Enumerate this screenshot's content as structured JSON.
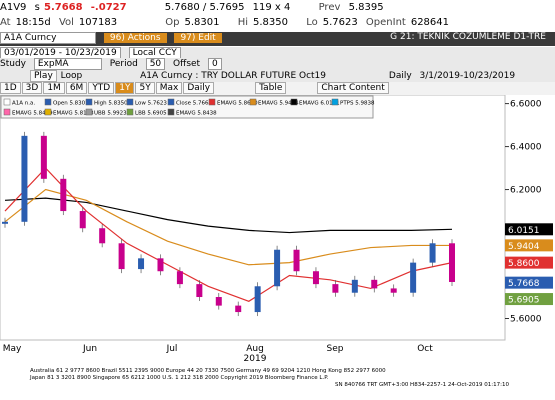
{
  "quote": {
    "ticker": "A1V9",
    "flag": "s",
    "last": "5.7668",
    "change": "-.0727",
    "bidask": "5.7680 / 5.7695",
    "size": "119 x 4",
    "prev_label": "Prev",
    "prev": "5.8395"
  },
  "stats": {
    "at_label": "At",
    "at": "18:15d",
    "vol_label": "Vol",
    "vol": "107183",
    "op_label": "Op",
    "op": "5.8301",
    "hi_label": "Hi",
    "hi": "5.8350",
    "lo_label": "Lo",
    "lo": "5.7623",
    "oi_label": "OpenInt",
    "oi": "628641"
  },
  "toolbar": {
    "security": "A1A Curncy",
    "actions": "96) Actions",
    "edit": "97) Edit",
    "page": "G 21: TEKNIK COZUMLEME D1-TRE"
  },
  "range": {
    "dates": "03/01/2019 - 10/23/2019",
    "currency": "Local CCY"
  },
  "study": {
    "label": "Study",
    "name": "ExpMA",
    "period_label": "Period",
    "period": "50",
    "offset_label": "Offset",
    "offset": "0"
  },
  "play": {
    "play": "Play",
    "loop": "Loop",
    "description": "A1A Curncy : TRY DOLLAR FUTURE Oct19",
    "freq": "Daily",
    "span": "3/1/2019-10/23/2019"
  },
  "buttons": [
    "1D",
    "3D",
    "1M",
    "6M",
    "YTD",
    "1Y",
    "5Y",
    "Max",
    "Daily",
    "Table",
    "Chart Content"
  ],
  "chart_data": {
    "type": "candlestick",
    "legend": [
      {
        "text": "A1A n.a.",
        "color": "#ffffff"
      },
      {
        "text": "Open 5.8301",
        "color": "#2a5db0"
      },
      {
        "text": "High 5.8350",
        "color": "#2a5db0"
      },
      {
        "text": "Low 5.7623",
        "color": "#2a5db0"
      },
      {
        "text": "Close 5.7668",
        "color": "#2a5db0"
      },
      {
        "text": "EMAVG 5.8600",
        "color": "#e03030"
      },
      {
        "text": "EMAVG 5.9404",
        "color": "#d98c1c"
      },
      {
        "text": "EMAVG 6.0151",
        "color": "#000000"
      },
      {
        "text": "PTPS 5.9838",
        "color": "#00a0e0"
      },
      {
        "text": "EMAVG 5.8449",
        "color": "#ff66aa"
      },
      {
        "text": "EMAVG 5.8193",
        "color": "#e0b000"
      },
      {
        "text": "UBB 5.9923",
        "color": "#999999"
      },
      {
        "text": "LBB 5.6905",
        "color": "#70a040"
      },
      {
        "text": "EMAVG 5.8438",
        "color": "#444444"
      }
    ],
    "series": [
      {
        "color": "#2a5db0",
        "down_color": "#c8008c",
        "values": [
          6.05,
          6.45,
          6.25,
          6.1,
          6.02,
          5.95,
          5.83,
          5.88,
          5.82,
          5.76,
          5.7,
          5.66,
          5.63,
          5.75,
          5.92,
          5.82,
          5.76,
          5.72,
          5.78,
          5.74,
          5.72,
          5.86,
          5.95,
          5.77
        ]
      },
      {
        "color": "#000000",
        "values": [
          6.15,
          6.16,
          6.14,
          6.1,
          6.06,
          6.03,
          6.01,
          6.0,
          6.01,
          6.01,
          6.01,
          6.015
        ]
      },
      {
        "color": "#d98c1c",
        "values": [
          6.05,
          6.2,
          6.15,
          6.05,
          5.96,
          5.9,
          5.85,
          5.86,
          5.9,
          5.93,
          5.94,
          5.94
        ]
      },
      {
        "color": "#e03030",
        "values": [
          6.1,
          6.3,
          6.1,
          5.95,
          5.85,
          5.75,
          5.68,
          5.8,
          5.78,
          5.74,
          5.82,
          5.86
        ]
      }
    ],
    "months": [
      "May",
      "Jun",
      "Jul",
      "Aug",
      "Sep",
      "Oct"
    ],
    "year": "2019",
    "ylim": [
      5.5,
      6.64
    ],
    "yticks": [
      {
        "value": 5.6,
        "label": "5.6000"
      },
      {
        "value": 6.2,
        "label": "6.2000"
      },
      {
        "value": 6.4,
        "label": "6.4000"
      },
      {
        "value": 6.6,
        "label": "6.6000"
      }
    ],
    "price_tags": [
      {
        "label": "6.0151",
        "color": "#000000",
        "text_color": "#ffffff"
      },
      {
        "label": "5.9404",
        "color": "#d98c1c",
        "text_color": "#ffffff"
      },
      {
        "label": "5.8600",
        "color": "#e03030",
        "text_color": "#ffffff"
      },
      {
        "label": "5.7668",
        "color": "#2a5db0",
        "text_color": "#ffffff"
      },
      {
        "label": "5.6905",
        "color": "#70a040",
        "text_color": "#ffffff"
      }
    ]
  },
  "footer": [
    "Australia 61 2 9777 8600 Brazil 5511 2395 9000 Europe 44 20 7330 7500 Germany 49 69 9204 1210 Hong Kong 852 2977 6000",
    "Japan 81 3 3201 8900        Singapore 65 6212 1000        U.S. 1 212 318 2000        Copyright 2019 Bloomberg Finance L.P.",
    "SN 840766 TRT  GMT+3:00 H834-2257-1 24-Oct-2019 01:17:10"
  ]
}
